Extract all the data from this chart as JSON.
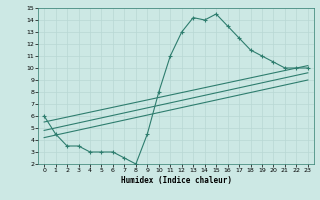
{
  "xlabel": "Humidex (Indice chaleur)",
  "xlim": [
    -0.5,
    23.5
  ],
  "ylim": [
    2,
    15
  ],
  "xticks": [
    0,
    1,
    2,
    3,
    4,
    5,
    6,
    7,
    8,
    9,
    10,
    11,
    12,
    13,
    14,
    15,
    16,
    17,
    18,
    19,
    20,
    21,
    22,
    23
  ],
  "yticks": [
    2,
    3,
    4,
    5,
    6,
    7,
    8,
    9,
    10,
    11,
    12,
    13,
    14,
    15
  ],
  "line_color": "#2e7d6e",
  "bg_color": "#cce8e4",
  "main_x": [
    0,
    1,
    2,
    3,
    4,
    5,
    6,
    7,
    8,
    9,
    10,
    11,
    12,
    13,
    14,
    15,
    16,
    17,
    18,
    19,
    20,
    21,
    22,
    23
  ],
  "main_y": [
    6.0,
    4.5,
    3.5,
    3.5,
    3.0,
    3.0,
    3.0,
    2.5,
    2.0,
    4.5,
    8.0,
    11.0,
    13.0,
    14.2,
    14.0,
    14.5,
    13.5,
    12.5,
    11.5,
    11.0,
    10.5,
    10.0,
    10.0,
    10.0
  ],
  "trend1_x": [
    0,
    23
  ],
  "trend1_y": [
    5.5,
    10.2
  ],
  "trend2_x": [
    0,
    23
  ],
  "trend2_y": [
    4.8,
    9.6
  ],
  "trend3_x": [
    0,
    23
  ],
  "trend3_y": [
    4.2,
    9.0
  ]
}
